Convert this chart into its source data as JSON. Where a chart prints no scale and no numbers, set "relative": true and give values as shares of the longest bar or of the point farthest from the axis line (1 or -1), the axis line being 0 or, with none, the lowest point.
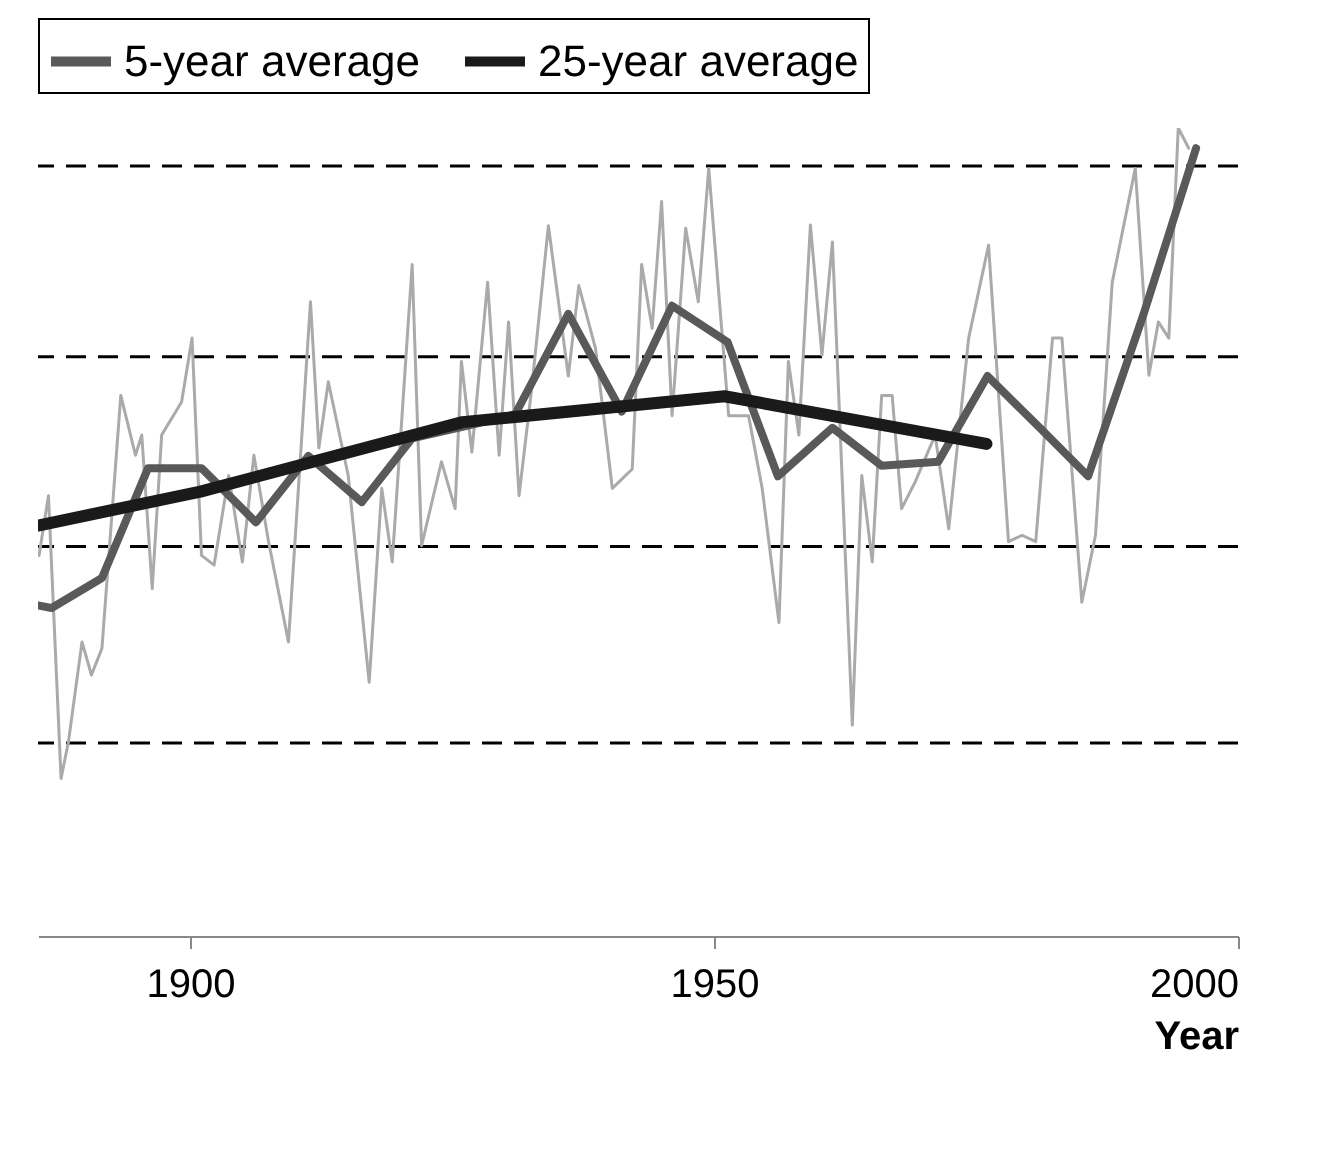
{
  "chart_data": {
    "type": "line",
    "relative": true,
    "xlabel": "Year",
    "xlim": [
      1885.5,
      2000
    ],
    "xticks": [
      1900,
      1950,
      2000
    ],
    "legend": "top",
    "line_style": "solid",
    "marker": "none",
    "ref_lines": [
      {
        "axis": "y",
        "value": 0.239,
        "color": "#000000",
        "line_style": "dashed"
      },
      {
        "axis": "y",
        "value": 0.482,
        "color": "#000000",
        "line_style": "dashed"
      },
      {
        "axis": "y",
        "value": 0.717,
        "color": "#000000",
        "line_style": "dashed"
      },
      {
        "axis": "y",
        "value": 0.953,
        "color": "#000000",
        "line_style": "dashed"
      }
    ],
    "series": [
      {
        "color": "#aaaaaa",
        "x": [
          1885.6,
          1886.5,
          1887.7,
          1888.4,
          1889.7,
          1890.6,
          1891.6,
          1893.4,
          1894.8,
          1895.4,
          1896.4,
          1897.3,
          1899.2,
          1900.2,
          1901.1,
          1902.3,
          1903.7,
          1905,
          1906.1,
          1907.5,
          1909.4,
          1911.5,
          1912.3,
          1913.2,
          1915.1,
          1917.1,
          1918.3,
          1919.3,
          1921.2,
          1922.1,
          1924,
          1925.3,
          1925.9,
          1926.9,
          1928.4,
          1929.5,
          1930.4,
          1931.4,
          1932.6,
          1934.2,
          1936.1,
          1937.1,
          1938.7,
          1940.3,
          1942.2,
          1943.1,
          1944.1,
          1945,
          1946,
          1947.3,
          1948.5,
          1949.5,
          1951.4,
          1953.3,
          1954.6,
          1956.2,
          1957.1,
          1958.1,
          1959.2,
          1960.3,
          1961.3,
          1963.2,
          1964.1,
          1965.1,
          1966,
          1967,
          1967.9,
          1969.2,
          1971.1,
          1972.4,
          1974.3,
          1976.2,
          1978.1,
          1979.4,
          1980.7,
          1982.3,
          1983.2,
          1985.1,
          1986.4,
          1988,
          1990.2,
          1991.5,
          1992.4,
          1993.4,
          1994.3,
          1995.3
        ],
        "values": [
          0.471,
          0.545,
          0.195,
          0.24,
          0.364,
          0.323,
          0.356,
          0.669,
          0.595,
          0.62,
          0.43,
          0.62,
          0.661,
          0.74,
          0.471,
          0.459,
          0.57,
          0.463,
          0.595,
          0.488,
          0.364,
          0.785,
          0.604,
          0.686,
          0.57,
          0.314,
          0.554,
          0.463,
          0.831,
          0.483,
          0.587,
          0.529,
          0.711,
          0.599,
          0.809,
          0.595,
          0.76,
          0.545,
          0.677,
          0.879,
          0.693,
          0.805,
          0.727,
          0.554,
          0.578,
          0.831,
          0.752,
          0.909,
          0.644,
          0.876,
          0.785,
          0.95,
          0.644,
          0.644,
          0.554,
          0.388,
          0.711,
          0.62,
          0.88,
          0.719,
          0.859,
          0.261,
          0.57,
          0.463,
          0.669,
          0.669,
          0.529,
          0.562,
          0.62,
          0.504,
          0.74,
          0.855,
          0.488,
          0.496,
          0.488,
          0.74,
          0.74,
          0.413,
          0.496,
          0.809,
          0.95,
          0.694,
          0.76,
          0.74,
          1,
          0.975
        ]
      },
      {
        "name": "5-year average",
        "color": "#595959",
        "x": [
          1885.5,
          1886.8,
          1891.6,
          1896,
          1901.1,
          1906.3,
          1911.3,
          1916.4,
          1921.2,
          1926,
          1931,
          1936.1,
          1941.2,
          1946,
          1951.3,
          1956.1,
          1961.3,
          1966,
          1971.4,
          1976.1,
          1981,
          1985.7,
          1991,
          1996
        ],
        "values": [
          0.409,
          0.406,
          0.443,
          0.579,
          0.579,
          0.512,
          0.594,
          0.537,
          0.616,
          0.63,
          0.645,
          0.77,
          0.649,
          0.78,
          0.735,
          0.569,
          0.629,
          0.582,
          0.587,
          0.693,
          0.63,
          0.569,
          0.77,
          0.975
        ]
      },
      {
        "name": "25-year average",
        "color": "#1a1a1a",
        "x": [
          1885.5,
          1901,
          1926,
          1951,
          1976
        ],
        "values": [
          0.508,
          0.55,
          0.636,
          0.668,
          0.609
        ]
      }
    ]
  }
}
